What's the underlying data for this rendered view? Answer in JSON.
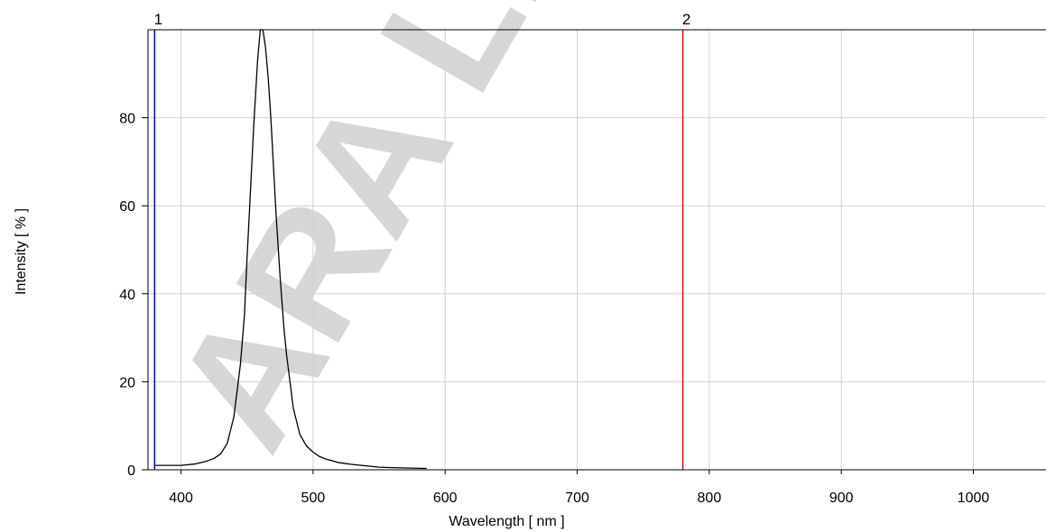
{
  "chart_data": {
    "type": "line",
    "xlabel": "Wavelength [ nm ]",
    "ylabel": "Intensity [ % ]",
    "xlim": [
      375,
      1055
    ],
    "ylim": [
      0,
      100
    ],
    "x_ticks": [
      400,
      500,
      600,
      700,
      800,
      900,
      1000
    ],
    "y_ticks": [
      0,
      20,
      40,
      60,
      80
    ],
    "grid": true,
    "colors": {
      "grid": "#d4d0c8",
      "curve": "#000000",
      "marker1": "#0000ff",
      "marker2": "#ff0000"
    },
    "markers": [
      {
        "label": "1",
        "x": 380
      },
      {
        "label": "2",
        "x": 780
      }
    ],
    "series": [
      {
        "x": [
          380,
          390,
          400,
          410,
          420,
          425,
          430,
          435,
          440,
          445,
          448,
          450,
          452,
          455,
          458,
          460,
          462,
          464,
          466,
          468,
          470,
          472,
          475,
          478,
          480,
          485,
          490,
          495,
          500,
          505,
          510,
          520,
          530,
          540,
          550,
          560,
          570,
          586
        ],
        "values": [
          1,
          1,
          1,
          1.3,
          2,
          2.6,
          3.6,
          6,
          12,
          24,
          35,
          48,
          60,
          78,
          93,
          100,
          100,
          96,
          89,
          80,
          69,
          58,
          44,
          32,
          26,
          14,
          8,
          5.4,
          4,
          3,
          2.4,
          1.6,
          1.2,
          0.9,
          0.6,
          0.5,
          0.4,
          0.3
        ]
      }
    ],
    "watermark": "ARA LIG"
  }
}
